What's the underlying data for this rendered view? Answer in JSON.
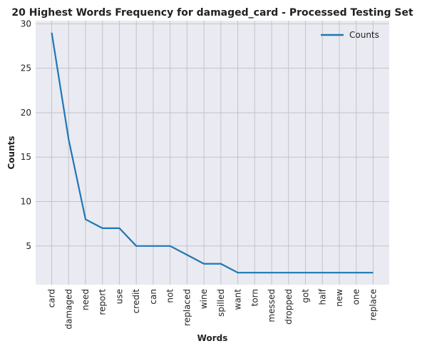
{
  "chart_data": {
    "type": "line",
    "title": "20 Highest Words Frequency for damaged_card - Processed Testing Set",
    "xlabel": "Words",
    "ylabel": "Counts",
    "categories": [
      "card",
      "damaged",
      "need",
      "report",
      "use",
      "credit",
      "can",
      "not",
      "replaced",
      "wine",
      "spilled",
      "want",
      "torn",
      "messed",
      "dropped",
      "got",
      "half",
      "new",
      "one",
      "replace"
    ],
    "series": [
      {
        "name": "Counts",
        "values": [
          29,
          17,
          8,
          7,
          7,
          5,
          5,
          5,
          4,
          3,
          3,
          2,
          2,
          2,
          2,
          2,
          2,
          2,
          2,
          2
        ]
      }
    ],
    "yticks": [
      5,
      10,
      15,
      20,
      25,
      30
    ],
    "ylim": [
      0.65,
      30.35
    ],
    "grid": true,
    "legend_position": "top-right",
    "colors": {
      "line": "#1f77b4",
      "background": "#eaeaf2",
      "grid": "#c3c3c8"
    }
  }
}
